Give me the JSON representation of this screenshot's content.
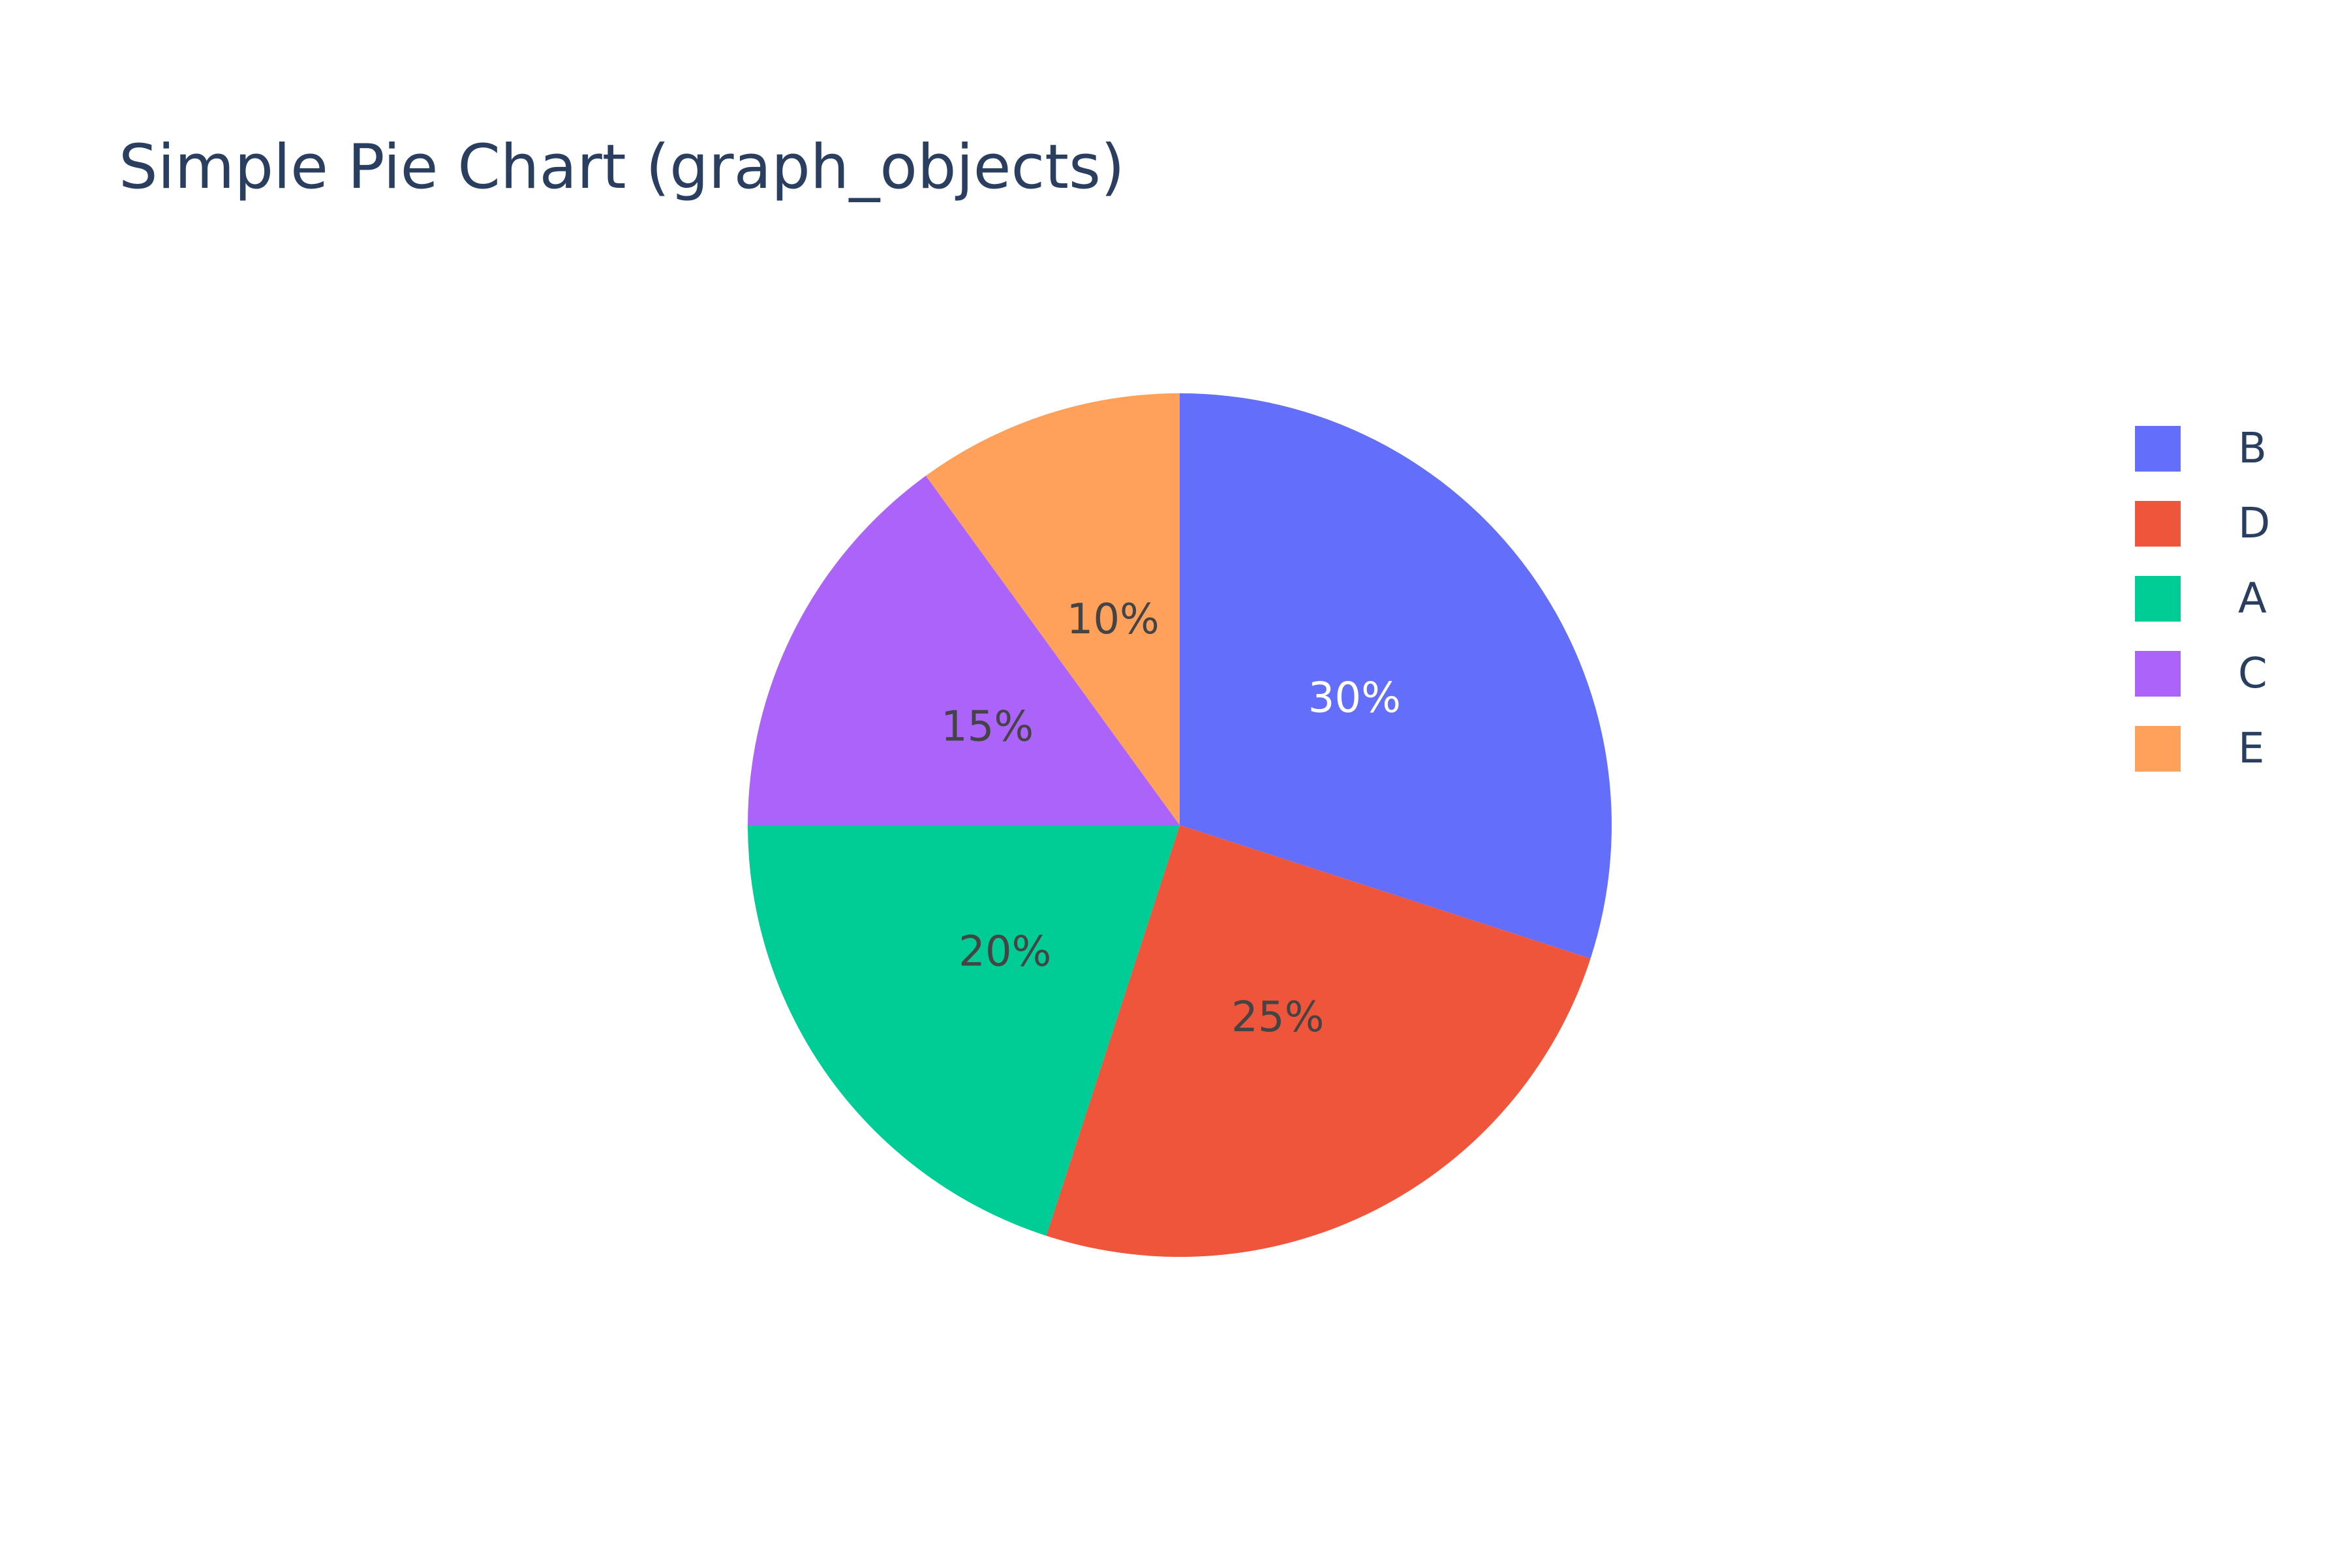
{
  "chart_data": {
    "type": "pie",
    "title": "Simple Pie Chart (graph_objects)",
    "labels": [
      "A",
      "B",
      "C",
      "D",
      "E"
    ],
    "values": [
      20,
      30,
      15,
      25,
      10
    ],
    "percent_labels": [
      "20%",
      "30%",
      "15%",
      "25%",
      "10%"
    ],
    "colors": [
      "#00cc96",
      "#636efa",
      "#ab63fa",
      "#ef553b",
      "#ffa15a"
    ],
    "text_colors": [
      "#444444",
      "#ffffff",
      "#444444",
      "#444444",
      "#444444"
    ],
    "sort": "descending",
    "direction": "clockwise",
    "start_angle": "top",
    "legend": {
      "placement": "right",
      "order": [
        "B",
        "D",
        "A",
        "C",
        "E"
      ]
    }
  }
}
